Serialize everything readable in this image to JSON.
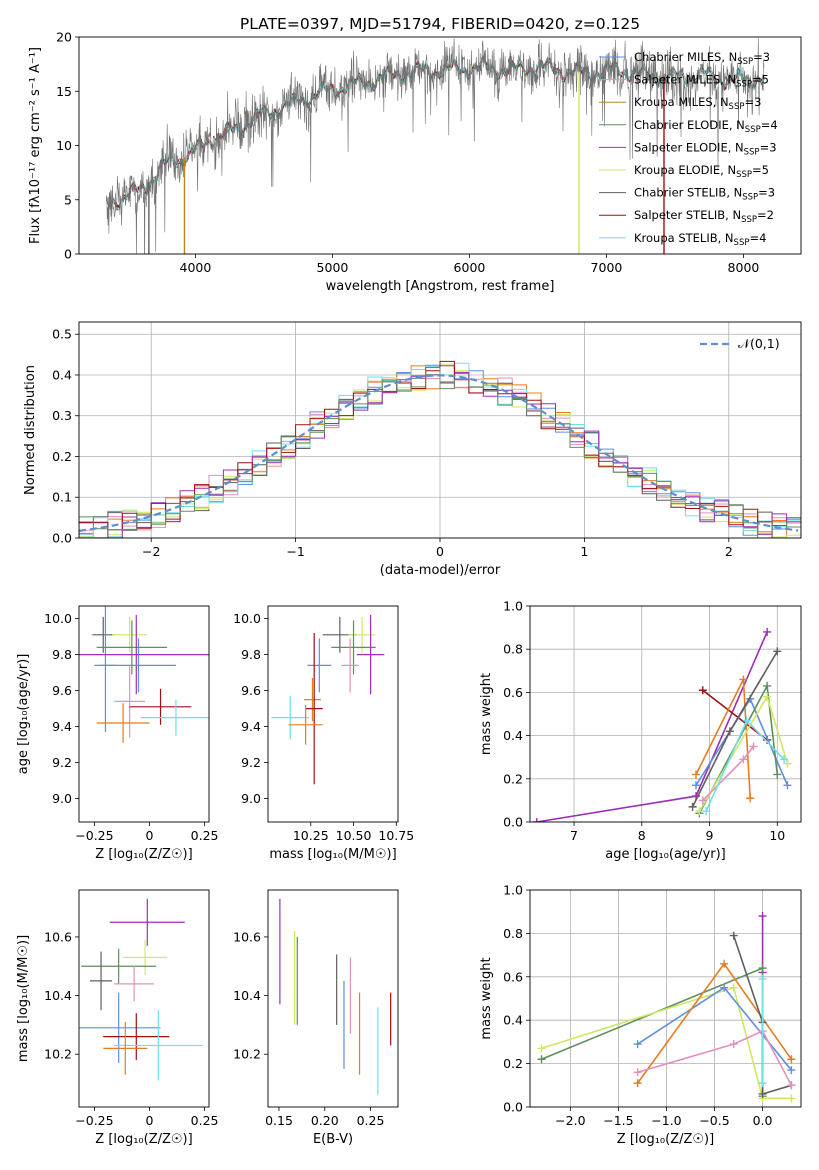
{
  "colors": [
    "#5e8fe0",
    "#e87c1f",
    "#e58fbe",
    "#5f5f5f",
    "#cfe860",
    "#6ee0e8",
    "#9b2fb5",
    "#a01010",
    "#b58a1d",
    "#5e8f5e"
  ],
  "chart_data": [
    {
      "id": "spectrum",
      "type": "line",
      "title": "PLATE=0397, MJD=51794, FIBERID=0420, z=0.125",
      "xlabel": "wavelength [Angstrom, rest frame]",
      "ylabel": "Flux [fλ10⁻¹⁷ erg cm⁻² s⁻¹ A⁻¹]",
      "xlim": [
        3150,
        8420
      ],
      "ylim": [
        0,
        20
      ],
      "xticks": [
        4000,
        5000,
        6000,
        7000,
        8000
      ],
      "yticks": [
        0,
        5,
        10,
        15,
        20
      ],
      "legend_position": "upper-right",
      "curve_anchors": {
        "wavelength": [
          3350,
          3500,
          3650,
          3800,
          3950,
          4100,
          4300,
          4500,
          4700,
          4900,
          5100,
          5300,
          5500,
          5700,
          5900,
          6100,
          6300,
          6500,
          6700,
          6900,
          7100,
          7300,
          7500,
          7700,
          7900,
          8100
        ],
        "flux": [
          4.8,
          5.2,
          6.5,
          8.5,
          9.0,
          10.5,
          11.5,
          13.0,
          13.8,
          14.8,
          15.5,
          16.0,
          16.6,
          16.9,
          17.0,
          17.2,
          16.9,
          17.3,
          16.8,
          16.7,
          17.0,
          16.4,
          16.3,
          16.5,
          16.0,
          16.2
        ]
      },
      "series": [
        {
          "name": "Chabrier MILES, N_SSP=3",
          "label": "Chabrier MILES, N",
          "sub": "SSP",
          "suffix": "=3",
          "color": "#5e8fe0"
        },
        {
          "name": "Salpeter MILES, N_SSP=5",
          "label": "Salpeter MILES, N",
          "sub": "SSP",
          "suffix": "=5",
          "color": "#e58fbe"
        },
        {
          "name": "Kroupa MILES, N_SSP=3",
          "label": "Kroupa MILES, N",
          "sub": "SSP",
          "suffix": "=3",
          "color": "#b58a1d"
        },
        {
          "name": "Chabrier ELODIE, N_SSP=4",
          "label": "Chabrier ELODIE, N",
          "sub": "SSP",
          "suffix": "=4",
          "color": "#5e8f5e"
        },
        {
          "name": "Salpeter ELODIE, N_SSP=3",
          "label": "Salpeter ELODIE, N",
          "sub": "SSP",
          "suffix": "=3",
          "color": "#9b2fb5"
        },
        {
          "name": "Kroupa ELODIE, N_SSP=5",
          "label": "Kroupa ELODIE, N",
          "sub": "SSP",
          "suffix": "=5",
          "color": "#cfe860"
        },
        {
          "name": "Chabrier STELIB, N_SSP=3",
          "label": "Chabrier STELIB, N",
          "sub": "SSP",
          "suffix": "=3",
          "color": "#5f5f5f"
        },
        {
          "name": "Salpeter STELIB, N_SSP=2",
          "label": "Salpeter STELIB, N",
          "sub": "SSP",
          "suffix": "=2",
          "color": "#a01010"
        },
        {
          "name": "Kroupa STELIB, N_SSP=4",
          "label": "Kroupa STELIB, N",
          "sub": "SSP",
          "suffix": "=4",
          "color": "#6ee0e8"
        }
      ],
      "drops_to_zero": [
        3660,
        3920,
        6800,
        7420
      ]
    },
    {
      "id": "residuals",
      "type": "histogram",
      "xlabel": "(data-model)/error",
      "ylabel": "Normed distribution",
      "xlim": [
        -2.5,
        2.5
      ],
      "ylim": [
        0,
        0.53
      ],
      "xticks": [
        -2,
        -1,
        0,
        1,
        2
      ],
      "yticks": [
        0.0,
        0.1,
        0.2,
        0.3,
        0.4,
        0.5
      ],
      "grid": true,
      "bin_width": 0.1,
      "reference_curve": {
        "label": "𝒩(0,1)",
        "color": "#5e8fd0"
      },
      "legend_position": "upper-right"
    },
    {
      "id": "age-vs-z",
      "type": "errorbar",
      "xlabel": "Z [log₁₀(Z/Z☉)]",
      "ylabel": "age  [log₁₀(age/yr)]",
      "xlim": [
        -0.32,
        0.27
      ],
      "ylim": [
        8.87,
        10.07
      ],
      "xticks": [
        -0.25,
        0.0,
        0.25
      ],
      "yticks": [
        9.0,
        9.2,
        9.4,
        9.6,
        9.8,
        10.0
      ],
      "points": [
        {
          "x": -0.21,
          "y": 9.91,
          "xerr": 0.05,
          "yerr": 0.1,
          "color": "#5f5f5f"
        },
        {
          "x": -0.2,
          "y": 9.74,
          "xerr": 0.05,
          "yerr": 0.37,
          "color": "#5e8fe0"
        },
        {
          "x": -0.09,
          "y": 9.91,
          "xerr": 0.08,
          "yerr": 0.1,
          "color": "#cfe860"
        },
        {
          "x": -0.08,
          "y": 9.84,
          "xerr": 0.16,
          "yerr": 0.15,
          "color": "#5e8f5e"
        },
        {
          "x": -0.06,
          "y": 9.8,
          "xerr": 0.34,
          "yerr": 0.22,
          "color": "#9b2fb5"
        },
        {
          "x": -0.05,
          "y": 9.74,
          "xerr": 0.17,
          "yerr": 0.15,
          "color": "#5e8fe0"
        },
        {
          "x": -0.09,
          "y": 9.54,
          "xerr": 0.07,
          "yerr": 0.2,
          "color": "#e58fbe"
        },
        {
          "x": -0.12,
          "y": 9.42,
          "xerr": 0.12,
          "yerr": 0.11,
          "color": "#e87c1f"
        },
        {
          "x": 0.05,
          "y": 9.51,
          "xerr": 0.14,
          "yerr": 0.1,
          "color": "#a01010"
        },
        {
          "x": 0.12,
          "y": 9.45,
          "xerr": 0.16,
          "yerr": 0.1,
          "color": "#6ee0e8"
        }
      ]
    },
    {
      "id": "age-vs-mass",
      "type": "errorbar",
      "xlabel": "mass [log₁₀(M/M☉)]",
      "xlim": [
        10.0,
        10.76
      ],
      "ylim": [
        8.87,
        10.07
      ],
      "xticks": [
        10.25,
        10.5,
        10.75
      ],
      "xtick_labels": [
        "10.25",
        "10.50",
        "10.75"
      ],
      "yticks": [
        9.0,
        9.2,
        9.4,
        9.6,
        9.8,
        10.0
      ],
      "points": [
        {
          "x": 10.42,
          "y": 9.91,
          "xerr": 0.1,
          "yerr": 0.1,
          "color": "#5f5f5f"
        },
        {
          "x": 10.55,
          "y": 9.91,
          "xerr": 0.08,
          "yerr": 0.1,
          "color": "#cfe860"
        },
        {
          "x": 10.5,
          "y": 9.84,
          "xerr": 0.13,
          "yerr": 0.15,
          "color": "#5e8f5e"
        },
        {
          "x": 10.6,
          "y": 9.8,
          "xerr": 0.08,
          "yerr": 0.22,
          "color": "#9b2fb5"
        },
        {
          "x": 10.3,
          "y": 9.74,
          "xerr": 0.07,
          "yerr": 0.15,
          "color": "#5e8fe0"
        },
        {
          "x": 10.48,
          "y": 9.74,
          "xerr": 0.05,
          "yerr": 0.15,
          "color": "#e58fbe"
        },
        {
          "x": 10.26,
          "y": 9.55,
          "xerr": 0.05,
          "yerr": 0.12,
          "color": "#e87c1f"
        },
        {
          "x": 10.27,
          "y": 9.5,
          "xerr": 0.05,
          "yerr": 0.42,
          "color": "#a01010"
        },
        {
          "x": 10.13,
          "y": 9.45,
          "xerr": 0.11,
          "yerr": 0.12,
          "color": "#6ee0e8"
        },
        {
          "x": 10.22,
          "y": 9.41,
          "xerr": 0.1,
          "yerr": 0.11,
          "color": "#e87c1f"
        }
      ]
    },
    {
      "id": "weight-vs-age",
      "type": "line-marker",
      "xlabel": "age  [log₁₀(age/yr)]",
      "ylabel": "mass weight",
      "xlim": [
        6.35,
        10.35
      ],
      "ylim": [
        0,
        1.0
      ],
      "xticks": [
        7,
        8,
        9,
        10
      ],
      "yticks": [
        0.0,
        0.2,
        0.4,
        0.6,
        0.8,
        1.0
      ],
      "grid": true,
      "series": [
        {
          "color": "#9b2fb5",
          "points": [
            [
              6.45,
              0.0
            ],
            [
              8.8,
              0.12
            ],
            [
              9.85,
              0.88
            ]
          ]
        },
        {
          "color": "#a01010",
          "points": [
            [
              8.9,
              0.61
            ],
            [
              9.85,
              0.38
            ]
          ]
        },
        {
          "color": "#e87c1f",
          "points": [
            [
              8.8,
              0.22
            ],
            [
              9.5,
              0.66
            ],
            [
              9.6,
              0.11
            ]
          ]
        },
        {
          "color": "#5e8fe0",
          "points": [
            [
              8.8,
              0.17
            ],
            [
              9.6,
              0.57
            ],
            [
              10.15,
              0.17
            ]
          ]
        },
        {
          "color": "#5f5f5f",
          "points": [
            [
              8.75,
              0.07
            ],
            [
              9.3,
              0.42
            ],
            [
              10.0,
              0.79
            ]
          ]
        },
        {
          "color": "#5e8f5e",
          "points": [
            [
              8.85,
              0.04
            ],
            [
              9.85,
              0.63
            ],
            [
              10.0,
              0.22
            ]
          ]
        },
        {
          "color": "#cfe860",
          "points": [
            [
              8.85,
              0.05
            ],
            [
              9.85,
              0.58
            ],
            [
              10.15,
              0.27
            ]
          ]
        },
        {
          "color": "#e58fbe",
          "points": [
            [
              8.9,
              0.1
            ],
            [
              9.5,
              0.29
            ],
            [
              9.65,
              0.35
            ]
          ]
        },
        {
          "color": "#6ee0e8",
          "points": [
            [
              8.95,
              0.05
            ],
            [
              9.55,
              0.47
            ],
            [
              10.1,
              0.29
            ]
          ]
        }
      ]
    },
    {
      "id": "mass-vs-z",
      "type": "errorbar",
      "xlabel": "Z [log₁₀(Z/Z☉)]",
      "ylabel": "mass [log₁₀(M/M☉)]",
      "xlim": [
        -0.32,
        0.27
      ],
      "ylim": [
        10.02,
        10.76
      ],
      "xticks": [
        -0.25,
        0.0,
        0.25
      ],
      "yticks": [
        10.2,
        10.4,
        10.6
      ],
      "points": [
        {
          "x": -0.01,
          "y": 10.65,
          "xerr": 0.17,
          "yerr": 0.08,
          "color": "#9b2fb5"
        },
        {
          "x": -0.02,
          "y": 10.53,
          "xerr": 0.1,
          "yerr": 0.06,
          "color": "#cfe860"
        },
        {
          "x": -0.14,
          "y": 10.5,
          "xerr": 0.17,
          "yerr": 0.06,
          "color": "#5e8f5e"
        },
        {
          "x": -0.22,
          "y": 10.45,
          "xerr": 0.05,
          "yerr": 0.1,
          "color": "#5f5f5f"
        },
        {
          "x": -0.07,
          "y": 10.44,
          "xerr": 0.09,
          "yerr": 0.06,
          "color": "#e58fbe"
        },
        {
          "x": -0.14,
          "y": 10.29,
          "xerr": 0.19,
          "yerr": 0.12,
          "color": "#5e8fe0"
        },
        {
          "x": -0.06,
          "y": 10.26,
          "xerr": 0.15,
          "yerr": 0.08,
          "color": "#a01010"
        },
        {
          "x": 0.04,
          "y": 10.23,
          "xerr": 0.2,
          "yerr": 0.12,
          "color": "#6ee0e8"
        },
        {
          "x": -0.11,
          "y": 10.22,
          "xerr": 0.1,
          "yerr": 0.09,
          "color": "#e87c1f"
        }
      ]
    },
    {
      "id": "mass-vs-ebv",
      "type": "errorbar",
      "xlabel": "E(B-V)",
      "xlim": [
        0.138,
        0.28
      ],
      "ylim": [
        10.02,
        10.76
      ],
      "xticks": [
        0.15,
        0.2,
        0.25
      ],
      "xtick_labels": [
        "0.15",
        "0.20",
        "0.25"
      ],
      "yticks": [
        10.2,
        10.4,
        10.6
      ],
      "points": [
        {
          "x": 0.151,
          "y": 10.55,
          "xerr": 0,
          "yerr": 0.18,
          "color": "#9b2fb5"
        },
        {
          "x": 0.167,
          "y": 10.46,
          "xerr": 0,
          "yerr": 0.16,
          "color": "#cfe860"
        },
        {
          "x": 0.17,
          "y": 10.45,
          "xerr": 0,
          "yerr": 0.15,
          "color": "#5e8f5e"
        },
        {
          "x": 0.213,
          "y": 10.42,
          "xerr": 0,
          "yerr": 0.12,
          "color": "#5f5f5f"
        },
        {
          "x": 0.221,
          "y": 10.3,
          "xerr": 0,
          "yerr": 0.15,
          "color": "#5e8fe0"
        },
        {
          "x": 0.228,
          "y": 10.4,
          "xerr": 0,
          "yerr": 0.13,
          "color": "#e58fbe"
        },
        {
          "x": 0.238,
          "y": 10.27,
          "xerr": 0,
          "yerr": 0.14,
          "color": "#e87c1f"
        },
        {
          "x": 0.258,
          "y": 10.21,
          "xerr": 0,
          "yerr": 0.15,
          "color": "#6ee0e8"
        },
        {
          "x": 0.272,
          "y": 10.32,
          "xerr": 0,
          "yerr": 0.09,
          "color": "#a01010"
        }
      ]
    },
    {
      "id": "weight-vs-z",
      "type": "line-marker",
      "xlabel": "Z [log₁₀(Z/Z☉)]",
      "ylabel": "mass weight",
      "xlim": [
        -2.42,
        0.4
      ],
      "ylim": [
        0,
        1.0
      ],
      "xticks": [
        -2.0,
        -1.5,
        -1.0,
        -0.5,
        0.0
      ],
      "xtick_labels": [
        "−2.0",
        "−1.5",
        "−1.0",
        "−0.5",
        "0.0"
      ],
      "yticks": [
        0.0,
        0.2,
        0.4,
        0.6,
        0.8,
        1.0
      ],
      "grid": true,
      "series": [
        {
          "color": "#9b2fb5",
          "points": [
            [
              0.0,
              0.88
            ],
            [
              0.0,
              0.62
            ]
          ]
        },
        {
          "color": "#5e8f5e",
          "points": [
            [
              -2.3,
              0.22
            ],
            [
              0.0,
              0.64
            ],
            [
              0.0,
              0.05
            ]
          ]
        },
        {
          "color": "#cfe860",
          "points": [
            [
              -2.3,
              0.27
            ],
            [
              -0.3,
              0.55
            ],
            [
              0.0,
              0.04
            ],
            [
              0.3,
              0.04
            ]
          ]
        },
        {
          "color": "#5e8fe0",
          "points": [
            [
              -1.3,
              0.29
            ],
            [
              -0.4,
              0.55
            ],
            [
              0.3,
              0.17
            ]
          ]
        },
        {
          "color": "#e87c1f",
          "points": [
            [
              -1.3,
              0.11
            ],
            [
              -0.4,
              0.66
            ],
            [
              0.3,
              0.22
            ]
          ]
        },
        {
          "color": "#5f5f5f",
          "points": [
            [
              -0.3,
              0.79
            ],
            [
              0.0,
              0.39
            ],
            [
              0.0,
              0.06
            ],
            [
              0.3,
              0.1
            ]
          ]
        },
        {
          "color": "#e58fbe",
          "points": [
            [
              -1.3,
              0.16
            ],
            [
              -0.3,
              0.29
            ],
            [
              0.0,
              0.35
            ],
            [
              0.3,
              0.1
            ]
          ]
        },
        {
          "color": "#6ee0e8",
          "points": [
            [
              0.0,
              0.59
            ],
            [
              0.0,
              0.11
            ]
          ]
        }
      ]
    }
  ]
}
